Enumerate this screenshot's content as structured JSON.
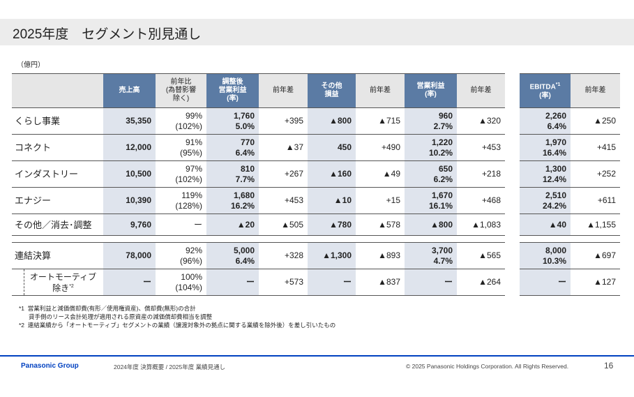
{
  "title": "2025年度　セグメント別見通し",
  "unit": "（億円）",
  "headers": [
    "売上高",
    "前年比\n(為替影響\n除く)",
    "調整後\n営業利益\n(率)",
    "前年差",
    "その他\n損益",
    "前年差",
    "営業利益\n(率)",
    "前年差"
  ],
  "ebitda_headers": [
    "EBITDA",
    "前年差"
  ],
  "ebitda_sup": "*1",
  "rows": [
    {
      "label": "くらし事業",
      "c": [
        "35,350",
        "99%\n(102%)",
        "1,760\n5.0%",
        "+395",
        "▲800",
        "▲715",
        "960\n2.7%",
        "▲320"
      ],
      "e": [
        "2,260\n6.4%",
        "▲250"
      ]
    },
    {
      "label": "コネクト",
      "c": [
        "12,000",
        "91%\n(95%)",
        "770\n6.4%",
        "▲37",
        "450",
        "+490",
        "1,220\n10.2%",
        "+453"
      ],
      "e": [
        "1,970\n16.4%",
        "+415"
      ]
    },
    {
      "label": "インダストリー",
      "c": [
        "10,500",
        "97%\n(102%)",
        "810\n7.7%",
        "+267",
        "▲160",
        "▲49",
        "650\n6.2%",
        "+218"
      ],
      "e": [
        "1,300\n12.4%",
        "+252"
      ]
    },
    {
      "label": "エナジー",
      "c": [
        "10,390",
        "119%\n(128%)",
        "1,680\n16.2%",
        "+453",
        "▲10",
        "+15",
        "1,670\n16.1%",
        "+468"
      ],
      "e": [
        "2,510\n24.2%",
        "+611"
      ]
    },
    {
      "label": "その他／消去･調整",
      "c": [
        "9,760",
        "ー",
        "▲20",
        "▲505",
        "▲780",
        "▲578",
        "▲800",
        "▲1,083"
      ],
      "e": [
        "▲40",
        "▲1,155"
      ]
    },
    {
      "label": "連結決算",
      "c": [
        "78,000",
        "92%\n(96%)",
        "5,000\n6.4%",
        "+328",
        "▲1,300",
        "▲893",
        "3,700\n4.7%",
        "▲565"
      ],
      "e": [
        "8,000\n10.3%",
        "▲697"
      ]
    },
    {
      "label": "オートモーティブ\n除き",
      "sup": "*2",
      "c": [
        "ー",
        "100%\n(104%)",
        "ー",
        "+573",
        "ー",
        "▲837",
        "ー",
        "▲264"
      ],
      "e": [
        "ー",
        "▲127"
      ]
    }
  ],
  "ebitda_label_suffix": "(率)",
  "notes": {
    "n1_mark": "*1",
    "n1a": "営業利益と減価償却費(有形／使用権資産)、償却費(無形)の合計",
    "n1b": "貸手側のリース会計処理が適用される原資産の減価償却費相当を調整",
    "n2_mark": "*2",
    "n2": "連結業績から「オートモーティブ」セグメントの業績（譲渡対象外の拠点に関する業績を除外後）を差し引いたもの"
  },
  "footer": {
    "brand": "Panasonic Group",
    "subtitle": "2024年度 決算概要 / 2025年度 業績見通し",
    "copyright": "© 2025 Panasonic Holdings Corporation. All Rights Reserved.",
    "page": "16"
  }
}
